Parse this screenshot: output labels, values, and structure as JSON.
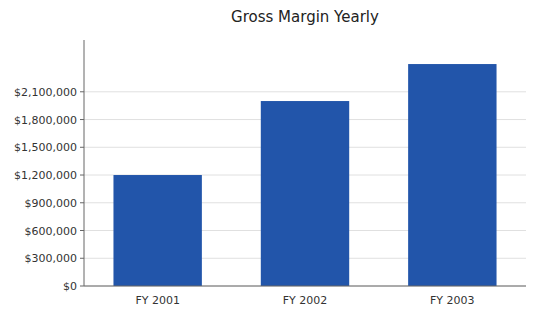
{
  "chart_data": {
    "type": "bar",
    "title": "Gross Margin Yearly",
    "categories": [
      "FY 2001",
      "FY 2002",
      "FY 2003"
    ],
    "values": [
      1200000,
      2000000,
      2400000
    ],
    "color": "#2255AA",
    "ylim": [
      0,
      2660000
    ],
    "yticks": [
      {
        "value": 0,
        "label": "$0"
      },
      {
        "value": 300000,
        "label": "$300,000"
      },
      {
        "value": 600000,
        "label": "$600,000"
      },
      {
        "value": 900000,
        "label": "$900,000"
      },
      {
        "value": 1200000,
        "label": "$1,200,000"
      },
      {
        "value": 1500000,
        "label": "$1,500,000"
      },
      {
        "value": 1800000,
        "label": "$1,800,000"
      },
      {
        "value": 2100000,
        "label": "$2,100,000"
      }
    ],
    "grid": true
  }
}
